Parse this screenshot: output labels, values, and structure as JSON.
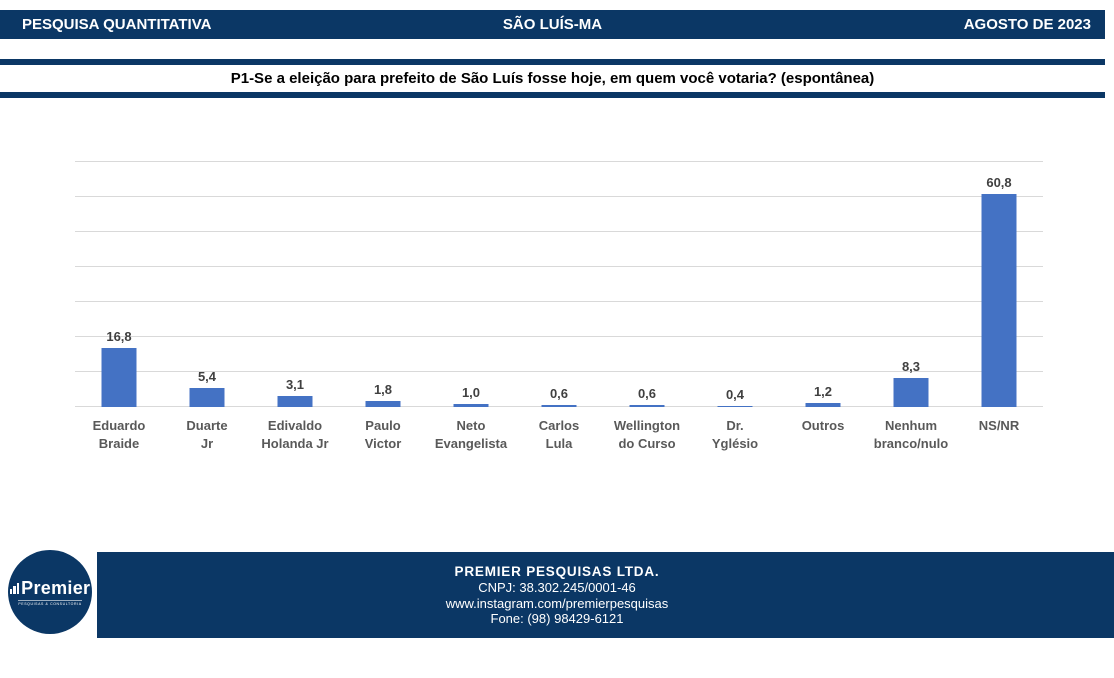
{
  "header": {
    "left": "PESQUISA QUANTITATIVA",
    "center": "SÃO LUÍS-MA",
    "right": "AGOSTO DE 2023"
  },
  "question": {
    "title": "P1-Se a eleição para prefeito de São Luís fosse hoje, em quem você votaria? (espontânea)"
  },
  "chart_data": {
    "type": "bar",
    "title": "",
    "categories": [
      "Eduardo\nBraide",
      "Duarte\nJr",
      "Edivaldo\nHolanda Jr",
      "Paulo\nVictor",
      "Neto\nEvangelista",
      "Carlos\nLula",
      "Wellington\ndo Curso",
      "Dr.\nYglésio",
      "Outros",
      "Nenhum\nbranco/nulo",
      "NS/NR"
    ],
    "values": [
      16.8,
      5.4,
      3.1,
      1.8,
      1.0,
      0.6,
      0.6,
      0.4,
      1.2,
      8.3,
      60.8
    ],
    "value_labels": [
      "16,8",
      "5,4",
      "3,1",
      "1,8",
      "1,0",
      "0,6",
      "0,6",
      "0,4",
      "1,2",
      "8,3",
      "60,8"
    ],
    "xlabel": "",
    "ylabel": "",
    "ylim": [
      0,
      70
    ],
    "grid_step": 10,
    "grid": "horizontal-only",
    "legend": "none",
    "bar_color": "#4472C4",
    "gridline_color": "#D9D9D9"
  },
  "footer": {
    "company": "PREMIER PESQUISAS LTDA.",
    "cnpj": "CNPJ: 38.302.245/0001-46",
    "instagram": "www.instagram.com/premierpesquisas",
    "phone": "Fone: (98) 98429-6121",
    "logo_name": "Premier",
    "logo_tagline": "PESQUISAS & CONSULTORIA"
  },
  "colors": {
    "navy": "#0B3765",
    "bar_blue": "#4472C4",
    "gridline": "#D9D9D9",
    "category_label": "#595959",
    "value_label": "#404040"
  }
}
